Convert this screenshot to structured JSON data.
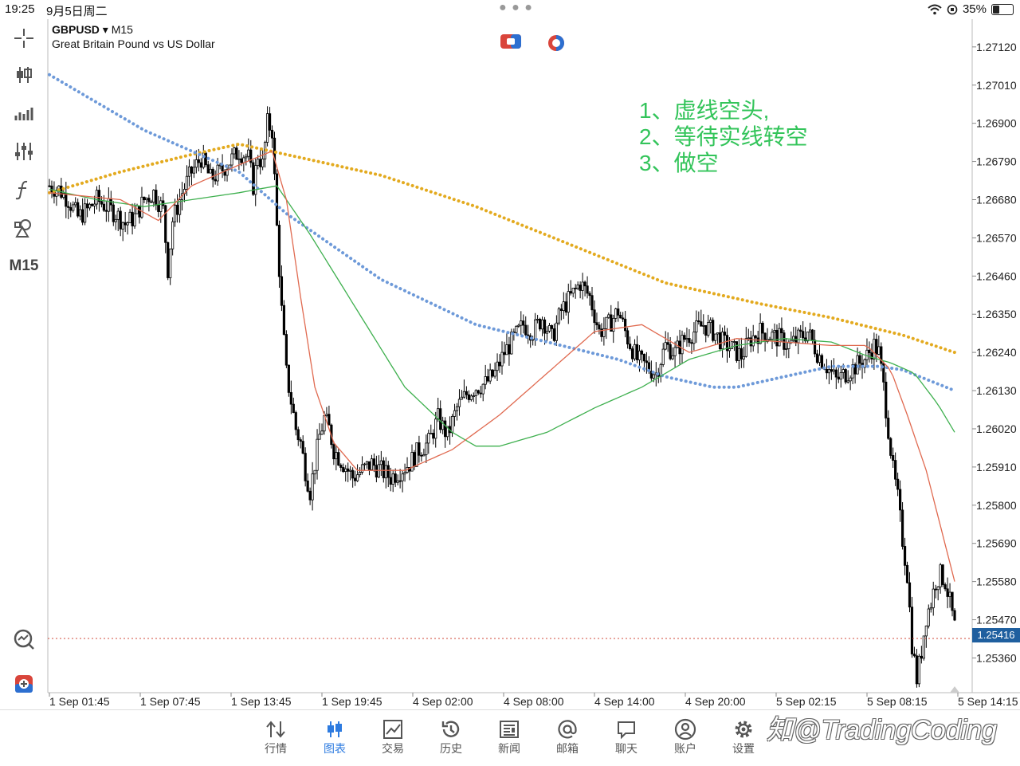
{
  "status": {
    "time": "19:25",
    "date": "9月5日周二",
    "battery": "35%",
    "battery_level": 0.35
  },
  "symbol": {
    "name": "GBPUSD",
    "timeframe": "M15",
    "description": "Great Britain Pound vs US Dollar",
    "arrow": "▾"
  },
  "toolbar": {
    "timeframe_label": "M15",
    "icons": [
      "crosshair-icon",
      "candlestick-icon",
      "indicators-icon",
      "sliders-icon",
      "function-icon",
      "shapes-icon"
    ]
  },
  "annotation": {
    "line1": "1、虚线空头,",
    "line2": "2、等待实线转空",
    "line3": "3、做空"
  },
  "current_price": "1.25416",
  "chart_data": {
    "type": "candlestick",
    "symbol": "GBPUSD",
    "timeframe": "M15",
    "y_ticks": [
      "1.27120",
      "1.27010",
      "1.26900",
      "1.26790",
      "1.26680",
      "1.26570",
      "1.26460",
      "1.26350",
      "1.26240",
      "1.26130",
      "1.26020",
      "1.25910",
      "1.25800",
      "1.25690",
      "1.25580",
      "1.25470",
      "1.25360"
    ],
    "ylim": [
      1.2526,
      1.272
    ],
    "x_ticks": [
      "1 Sep 01:45",
      "1 Sep 07:45",
      "1 Sep 13:45",
      "1 Sep 19:45",
      "4 Sep 02:00",
      "4 Sep 08:00",
      "4 Sep 14:00",
      "4 Sep 20:00",
      "5 Sep 02:15",
      "5 Sep 08:15",
      "5 Sep 14:15"
    ],
    "current_price": 1.25416,
    "close_path": [
      [
        0,
        1.2672
      ],
      [
        4,
        1.2671
      ],
      [
        8,
        1.2668
      ],
      [
        12,
        1.2663
      ],
      [
        16,
        1.2665
      ],
      [
        20,
        1.2668
      ],
      [
        24,
        1.2666
      ],
      [
        28,
        1.2664
      ],
      [
        32,
        1.2661
      ],
      [
        36,
        1.2663
      ],
      [
        40,
        1.2668
      ],
      [
        44,
        1.267
      ],
      [
        48,
        1.2665
      ],
      [
        50,
        1.2648
      ],
      [
        52,
        1.2662
      ],
      [
        56,
        1.267
      ],
      [
        60,
        1.2676
      ],
      [
        64,
        1.268
      ],
      [
        68,
        1.2674
      ],
      [
        72,
        1.2676
      ],
      [
        76,
        1.2679
      ],
      [
        80,
        1.2682
      ],
      [
        84,
        1.268
      ],
      [
        86,
        1.2672
      ],
      [
        88,
        1.2681
      ],
      [
        90,
        1.2678
      ],
      [
        92,
        1.269
      ],
      [
        94,
        1.2688
      ],
      [
        96,
        1.266
      ],
      [
        98,
        1.2636
      ],
      [
        100,
        1.2618
      ],
      [
        104,
        1.2602
      ],
      [
        106,
        1.2598
      ],
      [
        108,
        1.259
      ],
      [
        110,
        1.2584
      ],
      [
        112,
        1.2592
      ],
      [
        114,
        1.26
      ],
      [
        116,
        1.2605
      ],
      [
        118,
        1.2602
      ],
      [
        120,
        1.2596
      ],
      [
        124,
        1.2592
      ],
      [
        128,
        1.2588
      ],
      [
        132,
        1.259
      ],
      [
        136,
        1.2592
      ],
      [
        140,
        1.259
      ],
      [
        144,
        1.2588
      ],
      [
        148,
        1.259
      ],
      [
        152,
        1.2592
      ],
      [
        156,
        1.2596
      ],
      [
        160,
        1.2598
      ],
      [
        164,
        1.2605
      ],
      [
        168,
        1.26
      ],
      [
        172,
        1.2608
      ],
      [
        176,
        1.2612
      ],
      [
        180,
        1.2614
      ],
      [
        184,
        1.2615
      ],
      [
        188,
        1.2618
      ],
      [
        192,
        1.2624
      ],
      [
        196,
        1.2628
      ],
      [
        200,
        1.2632
      ],
      [
        204,
        1.263
      ],
      [
        208,
        1.2634
      ],
      [
        212,
        1.2628
      ],
      [
        216,
        1.2636
      ],
      [
        220,
        1.264
      ],
      [
        224,
        1.2644
      ],
      [
        228,
        1.264
      ],
      [
        232,
        1.263
      ],
      [
        236,
        1.2632
      ],
      [
        240,
        1.2636
      ],
      [
        244,
        1.2628
      ],
      [
        248,
        1.2622
      ],
      [
        252,
        1.262
      ],
      [
        256,
        1.2618
      ],
      [
        260,
        1.2626
      ],
      [
        264,
        1.2624
      ],
      [
        268,
        1.2628
      ],
      [
        272,
        1.263
      ],
      [
        276,
        1.2632
      ],
      [
        280,
        1.263
      ],
      [
        284,
        1.2627
      ],
      [
        288,
        1.2625
      ],
      [
        292,
        1.2623
      ],
      [
        296,
        1.2628
      ],
      [
        300,
        1.263
      ],
      [
        304,
        1.2629
      ],
      [
        308,
        1.2628
      ],
      [
        312,
        1.2626
      ],
      [
        316,
        1.2628
      ],
      [
        320,
        1.263
      ],
      [
        324,
        1.2624
      ],
      [
        328,
        1.262
      ],
      [
        332,
        1.2616
      ],
      [
        336,
        1.2618
      ],
      [
        340,
        1.262
      ],
      [
        344,
        1.2622
      ],
      [
        348,
        1.2626
      ],
      [
        350,
        1.2624
      ],
      [
        352,
        1.2614
      ],
      [
        354,
        1.2602
      ],
      [
        356,
        1.259
      ],
      [
        358,
        1.2582
      ],
      [
        360,
        1.257
      ],
      [
        362,
        1.256
      ],
      [
        364,
        1.254
      ],
      [
        366,
        1.253
      ],
      [
        368,
        1.2538
      ],
      [
        370,
        1.2548
      ],
      [
        372,
        1.2552
      ],
      [
        374,
        1.2558
      ],
      [
        376,
        1.256
      ],
      [
        378,
        1.2558
      ],
      [
        380,
        1.2552
      ],
      [
        382,
        1.2545
      ]
    ],
    "ma_blue_dotted": [
      [
        0,
        1.2704
      ],
      [
        40,
        1.2688
      ],
      [
        80,
        1.2676
      ],
      [
        100,
        1.2664
      ],
      [
        140,
        1.2645
      ],
      [
        180,
        1.2632
      ],
      [
        210,
        1.2627
      ],
      [
        240,
        1.2622
      ],
      [
        260,
        1.2617
      ],
      [
        280,
        1.2614
      ],
      [
        290,
        1.2614
      ],
      [
        310,
        1.2617
      ],
      [
        330,
        1.262
      ],
      [
        350,
        1.262
      ],
      [
        360,
        1.2619
      ],
      [
        382,
        1.2613
      ]
    ],
    "ma_orange_dotted": [
      [
        0,
        1.267
      ],
      [
        30,
        1.2676
      ],
      [
        60,
        1.2681
      ],
      [
        80,
        1.2684
      ],
      [
        100,
        1.2681
      ],
      [
        140,
        1.2675
      ],
      [
        180,
        1.2666
      ],
      [
        220,
        1.2655
      ],
      [
        260,
        1.2644
      ],
      [
        300,
        1.2638
      ],
      [
        330,
        1.2634
      ],
      [
        360,
        1.2629
      ],
      [
        382,
        1.2624
      ]
    ],
    "ma_red": [
      [
        0,
        1.267
      ],
      [
        30,
        1.2668
      ],
      [
        46,
        1.2662
      ],
      [
        60,
        1.2672
      ],
      [
        80,
        1.2678
      ],
      [
        94,
        1.2682
      ],
      [
        100,
        1.2668
      ],
      [
        106,
        1.264
      ],
      [
        112,
        1.2614
      ],
      [
        120,
        1.2598
      ],
      [
        130,
        1.259
      ],
      [
        150,
        1.259
      ],
      [
        170,
        1.2596
      ],
      [
        190,
        1.2606
      ],
      [
        210,
        1.2618
      ],
      [
        230,
        1.263
      ],
      [
        250,
        1.2632
      ],
      [
        270,
        1.2624
      ],
      [
        290,
        1.2628
      ],
      [
        310,
        1.2627
      ],
      [
        330,
        1.2626
      ],
      [
        345,
        1.2626
      ],
      [
        355,
        1.2619
      ],
      [
        362,
        1.2606
      ],
      [
        370,
        1.259
      ],
      [
        376,
        1.2574
      ],
      [
        382,
        1.2558
      ]
    ],
    "ma_green": [
      [
        0,
        1.2671
      ],
      [
        20,
        1.2668
      ],
      [
        40,
        1.2666
      ],
      [
        60,
        1.2668
      ],
      [
        80,
        1.267
      ],
      [
        96,
        1.2672
      ],
      [
        110,
        1.2658
      ],
      [
        130,
        1.2636
      ],
      [
        150,
        1.2614
      ],
      [
        170,
        1.2601
      ],
      [
        180,
        1.2597
      ],
      [
        190,
        1.2597
      ],
      [
        210,
        1.2601
      ],
      [
        230,
        1.2608
      ],
      [
        250,
        1.2614
      ],
      [
        270,
        1.2622
      ],
      [
        290,
        1.2626
      ],
      [
        310,
        1.2628
      ],
      [
        330,
        1.2627
      ],
      [
        345,
        1.2623
      ],
      [
        355,
        1.2621
      ],
      [
        365,
        1.2618
      ],
      [
        375,
        1.2609
      ],
      [
        382,
        1.2601
      ]
    ]
  }
}
